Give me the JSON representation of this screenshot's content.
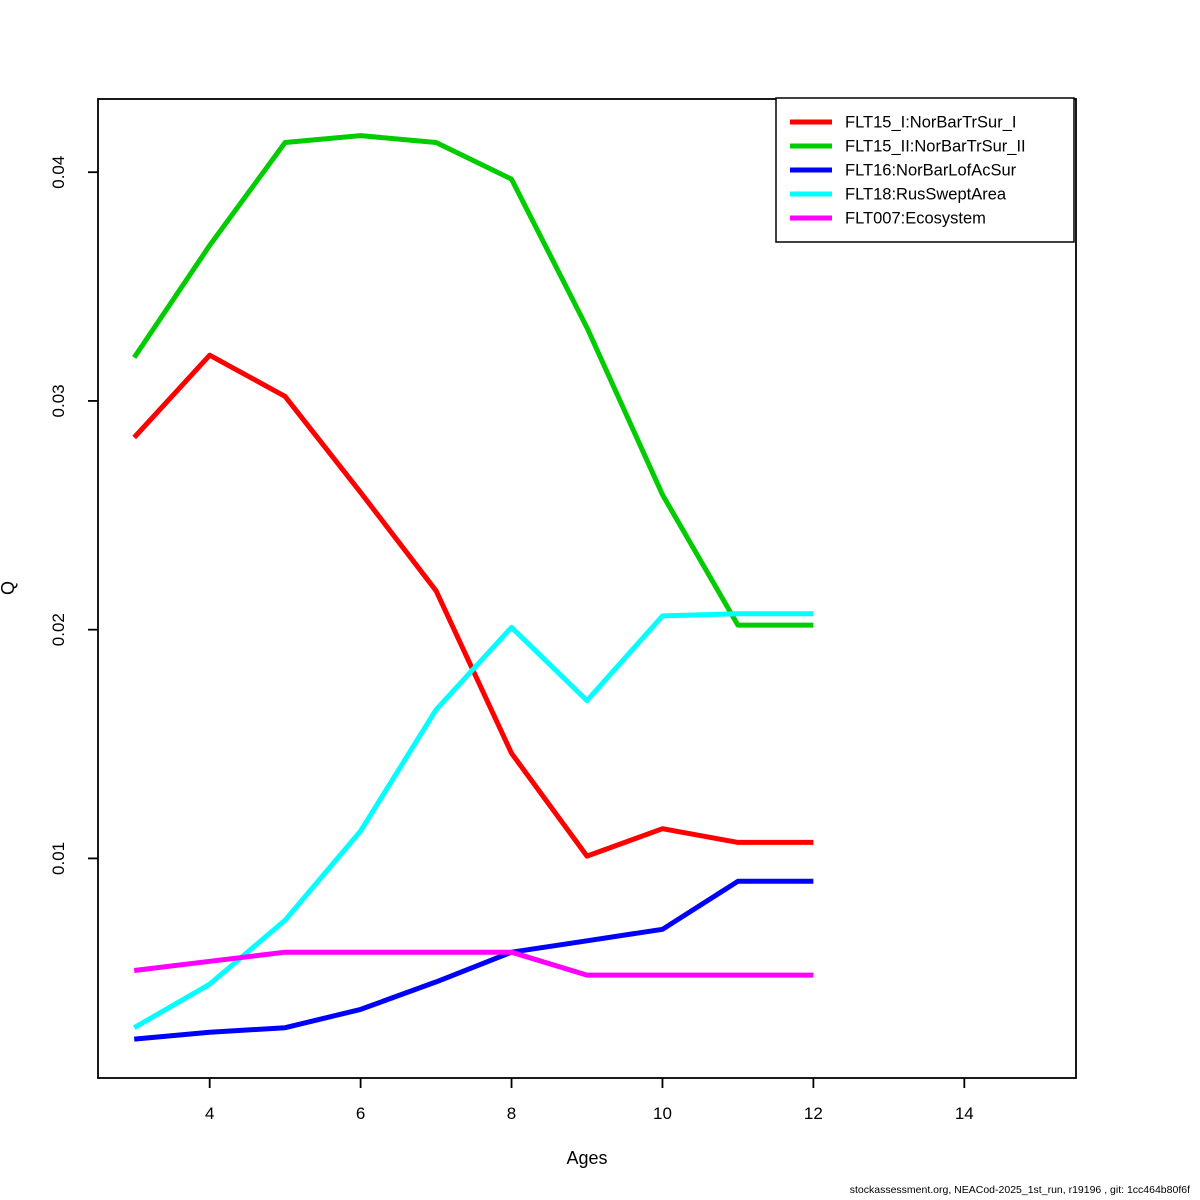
{
  "page": {
    "background_color": "#ffffff",
    "plot_border_color": "#000000"
  },
  "chart_data": {
    "type": "line",
    "title": "",
    "xlabel": "Ages",
    "ylabel": "Q",
    "x": [
      3,
      4,
      5,
      6,
      7,
      8,
      9,
      10,
      11,
      12
    ],
    "series": [
      {
        "name": "FLT15_I:NorBarTrSur_I",
        "color": "#ff0000",
        "values": [
          0.0284,
          0.032,
          0.0302,
          0.026,
          0.0217,
          0.0146,
          0.0101,
          0.0113,
          0.0107,
          0.0107
        ]
      },
      {
        "name": "FLT15_II:NorBarTrSur_II",
        "color": "#00cc00",
        "values": [
          0.0319,
          0.0368,
          0.0413,
          0.0416,
          0.0413,
          0.0397,
          0.0332,
          0.0259,
          0.0202,
          0.0202
        ]
      },
      {
        "name": "FLT16:NorBarLofAcSur",
        "color": "#0000ff",
        "values": [
          0.0021,
          0.0024,
          0.0026,
          0.0034,
          0.0046,
          0.0059,
          0.0064,
          0.0069,
          0.009,
          0.009
        ]
      },
      {
        "name": "FLT18:RusSweptArea",
        "color": "#00ffff",
        "values": [
          0.0026,
          0.0045,
          0.0073,
          0.0112,
          0.0165,
          0.0201,
          0.0169,
          0.0206,
          0.0207,
          0.0207
        ]
      },
      {
        "name": "FLT007:Ecosystem",
        "color": "#ff00ff",
        "values": [
          0.0051,
          0.0055,
          0.0059,
          0.0059,
          0.0059,
          0.0059,
          0.0049,
          0.0049,
          0.0049,
          0.0049
        ]
      }
    ],
    "x_ticks": [
      4,
      6,
      8,
      10,
      12,
      14
    ],
    "y_ticks": [
      0.01,
      0.02,
      0.03,
      0.04
    ],
    "xlim": [
      2.52,
      15.48
    ],
    "ylim": [
      0.0004,
      0.0432
    ],
    "grid": false,
    "legend_position": "topright"
  },
  "footer": {
    "credit": "stockassessment.org, NEACod-2025_1st_run, r19196 , git: 1cc464b80f6f"
  }
}
